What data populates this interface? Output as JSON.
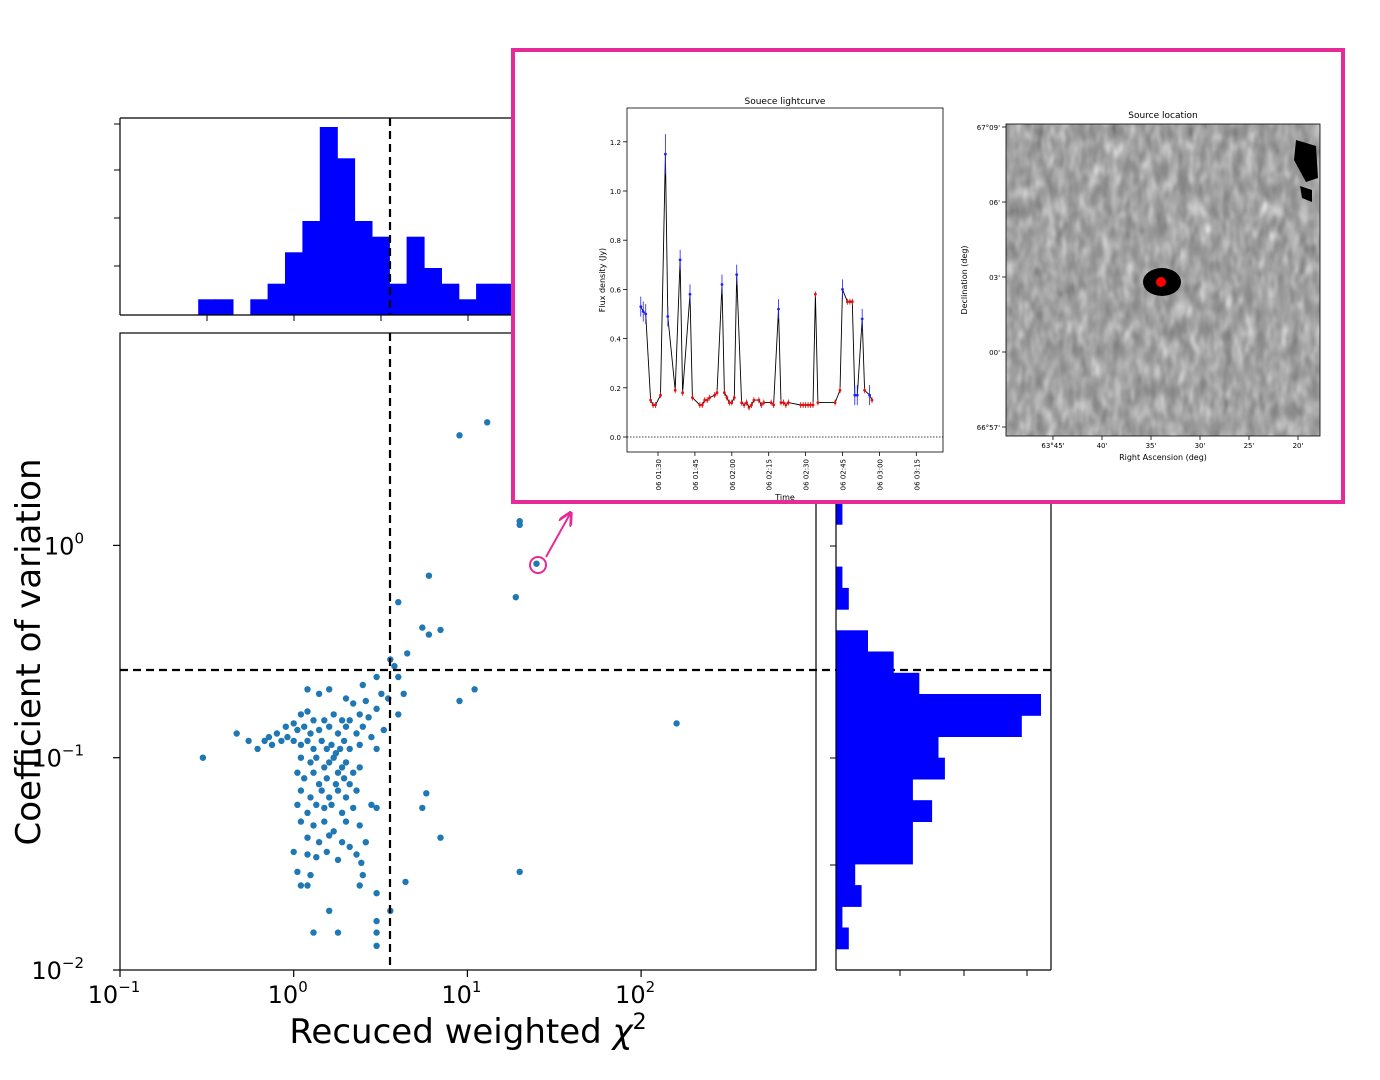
{
  "chart_data": [
    {
      "type": "scatter",
      "xlabel": "Recuced weighted χ²",
      "ylabel": "Coefficient of variation",
      "xscale": "log",
      "yscale": "log",
      "xlim": [
        0.1,
        1000
      ],
      "ylim": [
        0.01,
        10
      ],
      "x_ticks": [
        {
          "value": 0.1,
          "base": "10",
          "exp": "−1"
        },
        {
          "value": 1,
          "base": "10",
          "exp": "0"
        },
        {
          "value": 10,
          "base": "10",
          "exp": "1"
        },
        {
          "value": 100,
          "base": "10",
          "exp": "2"
        }
      ],
      "y_ticks": [
        {
          "value": 0.01,
          "base": "10",
          "exp": "−2"
        },
        {
          "value": 0.1,
          "base": "10",
          "exp": "−1"
        },
        {
          "value": 1,
          "base": "10",
          "exp": "0"
        }
      ],
      "threshold_x": 3.6,
      "threshold_y": 0.26,
      "highlighted_point": [
        25,
        0.82
      ],
      "color": "#1f77b4",
      "points": [
        [
          13,
          3.8
        ],
        [
          9,
          3.3
        ],
        [
          20,
          1.3
        ],
        [
          20,
          1.25
        ],
        [
          25,
          0.82
        ],
        [
          6,
          0.72
        ],
        [
          19,
          0.57
        ],
        [
          4,
          0.54
        ],
        [
          5.5,
          0.41
        ],
        [
          7,
          0.4
        ],
        [
          6,
          0.38
        ],
        [
          4.5,
          0.31
        ],
        [
          3.6,
          0.29
        ],
        [
          3.8,
          0.27
        ],
        [
          3,
          0.24
        ],
        [
          4,
          0.24
        ],
        [
          2.5,
          0.22
        ],
        [
          3.2,
          0.2
        ],
        [
          4.3,
          0.2
        ],
        [
          11,
          0.21
        ],
        [
          9,
          0.185
        ],
        [
          4,
          0.16
        ],
        [
          0.3,
          0.1
        ],
        [
          160,
          0.145
        ],
        [
          1.2,
          0.21
        ],
        [
          1.4,
          0.2
        ],
        [
          1.6,
          0.21
        ],
        [
          2.0,
          0.19
        ],
        [
          2.2,
          0.18
        ],
        [
          2.6,
          0.185
        ],
        [
          3,
          0.17
        ],
        [
          3.5,
          0.19
        ],
        [
          1.1,
          0.16
        ],
        [
          1.2,
          0.165
        ],
        [
          1.3,
          0.15
        ],
        [
          1.5,
          0.15
        ],
        [
          1.7,
          0.16
        ],
        [
          1.9,
          0.15
        ],
        [
          2.1,
          0.15
        ],
        [
          2.4,
          0.16
        ],
        [
          2.7,
          0.155
        ],
        [
          0.9,
          0.14
        ],
        [
          1.0,
          0.145
        ],
        [
          1.05,
          0.135
        ],
        [
          1.15,
          0.14
        ],
        [
          1.25,
          0.13
        ],
        [
          1.4,
          0.135
        ],
        [
          1.6,
          0.14
        ],
        [
          1.8,
          0.13
        ],
        [
          2.0,
          0.14
        ],
        [
          2.3,
          0.13
        ],
        [
          2.5,
          0.14
        ],
        [
          2.8,
          0.125
        ],
        [
          3.3,
          0.135
        ],
        [
          0.47,
          0.13
        ],
        [
          0.55,
          0.12
        ],
        [
          0.62,
          0.11
        ],
        [
          0.68,
          0.12
        ],
        [
          0.72,
          0.125
        ],
        [
          0.8,
          0.13
        ],
        [
          0.85,
          0.12
        ],
        [
          0.92,
          0.125
        ],
        [
          0.75,
          0.115
        ],
        [
          1.0,
          0.12
        ],
        [
          1.1,
          0.115
        ],
        [
          1.2,
          0.12
        ],
        [
          1.3,
          0.11
        ],
        [
          1.45,
          0.12
        ],
        [
          1.55,
          0.11
        ],
        [
          1.65,
          0.115
        ],
        [
          1.75,
          0.105
        ],
        [
          1.85,
          0.11
        ],
        [
          1.95,
          0.12
        ],
        [
          2.1,
          0.11
        ],
        [
          2.4,
          0.115
        ],
        [
          3.0,
          0.11
        ],
        [
          1.1,
          0.1
        ],
        [
          1.25,
          0.095
        ],
        [
          1.35,
          0.1
        ],
        [
          1.5,
          0.09
        ],
        [
          1.6,
          0.095
        ],
        [
          1.7,
          0.1
        ],
        [
          1.8,
          0.085
        ],
        [
          1.9,
          0.09
        ],
        [
          2.0,
          0.095
        ],
        [
          2.2,
          0.085
        ],
        [
          2.4,
          0.09
        ],
        [
          1.05,
          0.085
        ],
        [
          1.15,
          0.08
        ],
        [
          1.3,
          0.085
        ],
        [
          1.4,
          0.075
        ],
        [
          1.55,
          0.08
        ],
        [
          1.75,
          0.075
        ],
        [
          1.95,
          0.08
        ],
        [
          2.1,
          0.075
        ],
        [
          1.1,
          0.07
        ],
        [
          1.25,
          0.065
        ],
        [
          1.45,
          0.07
        ],
        [
          1.6,
          0.065
        ],
        [
          1.8,
          0.07
        ],
        [
          2.0,
          0.065
        ],
        [
          2.3,
          0.07
        ],
        [
          5.8,
          0.068
        ],
        [
          1.05,
          0.06
        ],
        [
          1.2,
          0.055
        ],
        [
          1.35,
          0.06
        ],
        [
          1.5,
          0.058
        ],
        [
          1.65,
          0.06
        ],
        [
          1.9,
          0.055
        ],
        [
          2.2,
          0.058
        ],
        [
          2.8,
          0.06
        ],
        [
          3.0,
          0.058
        ],
        [
          5.5,
          0.058
        ],
        [
          1.1,
          0.05
        ],
        [
          1.3,
          0.048
        ],
        [
          1.5,
          0.05
        ],
        [
          1.7,
          0.045
        ],
        [
          2.0,
          0.05
        ],
        [
          2.4,
          0.048
        ],
        [
          1.2,
          0.042
        ],
        [
          1.4,
          0.04
        ],
        [
          1.6,
          0.043
        ],
        [
          1.9,
          0.04
        ],
        [
          2.1,
          0.038
        ],
        [
          2.6,
          0.04
        ],
        [
          7,
          0.042
        ],
        [
          1.0,
          0.036
        ],
        [
          1.2,
          0.035
        ],
        [
          1.35,
          0.034
        ],
        [
          1.55,
          0.036
        ],
        [
          1.8,
          0.033
        ],
        [
          2.3,
          0.035
        ],
        [
          2.45,
          0.032
        ],
        [
          1.05,
          0.029
        ],
        [
          1.25,
          0.028
        ],
        [
          2.5,
          0.028
        ],
        [
          20,
          0.029
        ],
        [
          1.1,
          0.025
        ],
        [
          1.2,
          0.025
        ],
        [
          2.4,
          0.025
        ],
        [
          3,
          0.023
        ],
        [
          4.4,
          0.026
        ],
        [
          1.6,
          0.019
        ],
        [
          3.0,
          0.017
        ],
        [
          3.6,
          0.019
        ],
        [
          1.3,
          0.015
        ],
        [
          1.8,
          0.015
        ],
        [
          3.0,
          0.015
        ],
        [
          3.0,
          0.013
        ]
      ]
    },
    {
      "type": "bar",
      "role": "top-histogram",
      "color": "#0000ff",
      "edges_log10": [
        -0.55,
        -0.45,
        -0.35,
        -0.25,
        -0.15,
        -0.05,
        0.05,
        0.15,
        0.25,
        0.35,
        0.45,
        0.55,
        0.65,
        0.75,
        0.85,
        0.95,
        1.05,
        1.15,
        1.25
      ],
      "counts": [
        1,
        1,
        0,
        1,
        2,
        4,
        6,
        12,
        10,
        6,
        5,
        2,
        5,
        3,
        2,
        1,
        2,
        2
      ]
    },
    {
      "type": "bar",
      "role": "right-histogram",
      "orientation": "horizontal",
      "color": "#0000ff",
      "edges_log10": [
        -1.9,
        -1.8,
        -1.7,
        -1.6,
        -1.5,
        -1.4,
        -1.3,
        -1.2,
        -1.1,
        -1.0,
        -0.9,
        -0.8,
        -0.7,
        -0.6,
        -0.5,
        -0.4,
        -0.3,
        -0.2,
        -0.1,
        0.0,
        0.1,
        0.2
      ],
      "counts": [
        2,
        1,
        4,
        3,
        12,
        12,
        15,
        12,
        17,
        16,
        29,
        32,
        13,
        9,
        5,
        0,
        2,
        1,
        0,
        0,
        1,
        0
      ]
    },
    {
      "type": "line",
      "title": "Souece lightcurve",
      "xlabel": "Time",
      "ylabel": "Flux density (Jy)",
      "ylim": [
        -0.1,
        1.35
      ],
      "x_ticks": [
        "06 01:30",
        "06 01:45",
        "06 02:00",
        "06 02:15",
        "06 02:30",
        "06 02:45",
        "06 03:00",
        "06 03:15"
      ],
      "y_ticks": [
        "0.0",
        "0.2",
        "0.4",
        "0.6",
        "0.8",
        "1.0",
        "1.2"
      ],
      "x_minutes": [
        83,
        84,
        85,
        87,
        88,
        89,
        91,
        93,
        94,
        97,
        99,
        100,
        103,
        104,
        107,
        108,
        109,
        110,
        111,
        113,
        114,
        116,
        117,
        118,
        119,
        120,
        121,
        122,
        124,
        125,
        126,
        127,
        128,
        129,
        131,
        132,
        133,
        136,
        137,
        139,
        140,
        141,
        142,
        143,
        148,
        149,
        150,
        151,
        152,
        153,
        154,
        155,
        162,
        164,
        165,
        167,
        168,
        169,
        170,
        171,
        173,
        174,
        176,
        177
      ],
      "y_values": [
        0.53,
        0.51,
        0.5,
        0.15,
        0.13,
        0.13,
        0.17,
        1.15,
        0.49,
        0.19,
        0.72,
        0.18,
        0.58,
        0.16,
        0.13,
        0.13,
        0.15,
        0.15,
        0.16,
        0.17,
        0.18,
        0.62,
        0.18,
        0.16,
        0.14,
        0.14,
        0.16,
        0.66,
        0.14,
        0.13,
        0.14,
        0.12,
        0.13,
        0.15,
        0.15,
        0.13,
        0.14,
        0.14,
        0.13,
        0.52,
        0.14,
        0.14,
        0.13,
        0.14,
        0.13,
        0.13,
        0.13,
        0.13,
        0.13,
        0.13,
        0.58,
        0.14,
        0.14,
        0.19,
        0.6,
        0.55,
        0.55,
        0.55,
        0.17,
        0.17,
        0.48,
        0.19,
        0.17,
        0.15
      ],
      "variable_indices": [
        0,
        1,
        2,
        7,
        8,
        10,
        12,
        21,
        27,
        39,
        54,
        58,
        59,
        60,
        62
      ],
      "baseline": 0.0,
      "point_colors": {
        "high": "#1f1fff",
        "low": "#e01010",
        "line": "#000000"
      }
    },
    {
      "type": "image",
      "title": "Source location",
      "xlabel": "Right Ascension (deg)",
      "ylabel": "Declination (deg)",
      "x_ticks": [
        "63°45'",
        "40'",
        "35'",
        "30'",
        "25'",
        "20'"
      ],
      "y_ticks": [
        "67°09'",
        "06'",
        "03'",
        "00'",
        "66°57'"
      ],
      "marker_color": "#ff0000"
    }
  ],
  "inset_border_color": "#e52b97"
}
